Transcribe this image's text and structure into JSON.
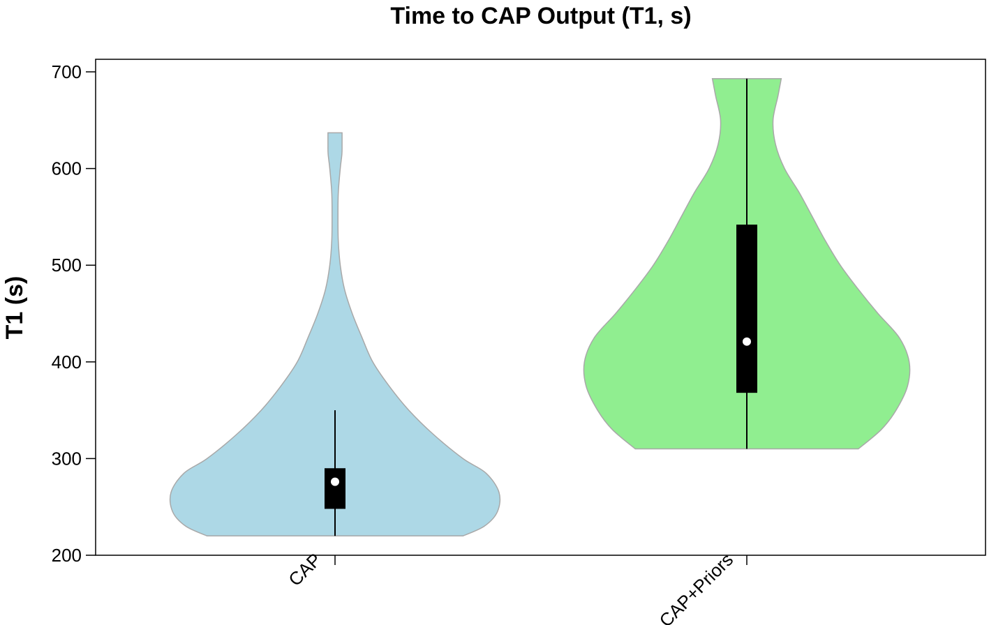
{
  "chart_data": {
    "type": "violin",
    "title": "Time to CAP Output (T1, s)",
    "xlabel": "",
    "ylabel": "T1 (s)",
    "ylim": [
      200,
      710
    ],
    "yticks": [
      "200",
      "300",
      "400",
      "500",
      "600",
      "700"
    ],
    "grid": false,
    "categories": [
      "CAP",
      "CAP+Priors"
    ],
    "series": [
      {
        "category": "CAP",
        "color": "#add8e6",
        "min": 220,
        "q1": 248,
        "median": 276,
        "q3": 290,
        "max": 637,
        "whisker_low": 220,
        "whisker_high": 350,
        "density": [
          [
            220,
            0.78
          ],
          [
            230,
            0.91
          ],
          [
            245,
            0.99
          ],
          [
            265,
            1.0
          ],
          [
            285,
            0.92
          ],
          [
            300,
            0.78
          ],
          [
            325,
            0.6
          ],
          [
            350,
            0.45
          ],
          [
            375,
            0.33
          ],
          [
            400,
            0.23
          ],
          [
            425,
            0.165
          ],
          [
            450,
            0.105
          ],
          [
            475,
            0.058
          ],
          [
            500,
            0.032
          ],
          [
            525,
            0.02
          ],
          [
            550,
            0.018
          ],
          [
            575,
            0.02
          ],
          [
            600,
            0.032
          ],
          [
            615,
            0.042
          ],
          [
            625,
            0.043
          ],
          [
            637,
            0.043
          ]
        ]
      },
      {
        "category": "CAP+Priors",
        "color": "#90ee90",
        "min": 310,
        "q1": 368,
        "median": 421,
        "q3": 542,
        "max": 693,
        "whisker_low": 310,
        "whisker_high": 693,
        "density": [
          [
            310,
            0.68
          ],
          [
            330,
            0.82
          ],
          [
            350,
            0.91
          ],
          [
            375,
            0.98
          ],
          [
            400,
            0.99
          ],
          [
            425,
            0.93
          ],
          [
            450,
            0.8
          ],
          [
            475,
            0.68
          ],
          [
            500,
            0.57
          ],
          [
            525,
            0.48
          ],
          [
            550,
            0.4
          ],
          [
            575,
            0.32
          ],
          [
            600,
            0.23
          ],
          [
            625,
            0.175
          ],
          [
            650,
            0.16
          ],
          [
            675,
            0.19
          ],
          [
            693,
            0.21
          ]
        ]
      }
    ]
  }
}
